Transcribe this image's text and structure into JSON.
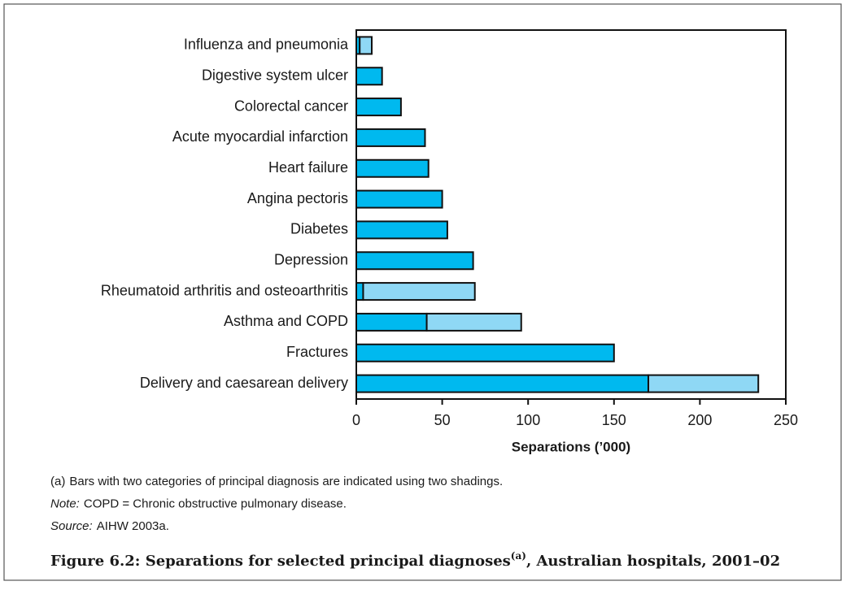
{
  "chart_data": {
    "type": "stacked-bar-horizontal",
    "title": "Figure 6.2: Separations for selected principal diagnoses",
    "title_superscript": "(a)",
    "title_end": ", Australian hospitals, 2001–02",
    "xlabel": "Separations (’000)",
    "notes": [
      {
        "prefix": "(a)",
        "text": "Bars with two categories of principal diagnosis are indicated using two shadings."
      },
      {
        "prefix": "Note:",
        "text": "COPD = Chronic obstructive pulmonary disease."
      },
      {
        "prefix": "Source:",
        "text": "AIHW 2003a."
      }
    ],
    "categories": [
      "Influenza and pneumonia",
      "Digestive system ulcer",
      "Colorectal cancer",
      "Acute myocardial infarction",
      "Heart failure",
      "Angina pectoris",
      "Diabetes",
      "Depression",
      "Rheumatoid arthritis and osteoarthritis",
      "Asthma and COPD",
      "Fractures",
      "Delivery and caesarean delivery"
    ],
    "series": [
      {
        "color": "#00b9ef",
        "values": [
          2,
          15,
          26,
          40,
          42,
          50,
          53,
          68,
          4,
          41,
          150,
          170
        ]
      },
      {
        "color": "#8fd8f5",
        "values": [
          7,
          null,
          null,
          null,
          null,
          null,
          null,
          null,
          65,
          55,
          null,
          64
        ]
      }
    ],
    "xlim": [
      0,
      250
    ],
    "xticks": [
      0,
      50,
      100,
      150,
      200,
      250
    ]
  }
}
